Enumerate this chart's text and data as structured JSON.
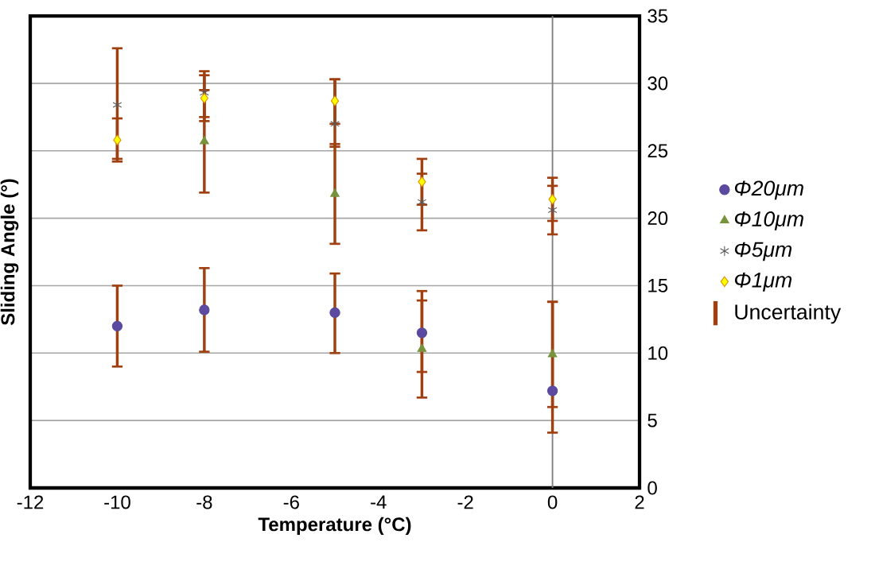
{
  "chart_data": {
    "type": "scatter",
    "xlabel": "Temperature (°C)",
    "ylabel": "Sliding Angle (°)",
    "x": [
      -10,
      -8,
      -5,
      -3,
      0
    ],
    "series": [
      {
        "name": "Φ20μm",
        "color": "#5b4a9f",
        "marker": "circle",
        "values": [
          12.0,
          13.2,
          13.0,
          11.5,
          7.2
        ],
        "errors": [
          [
            9.0,
            15.0
          ],
          [
            10.1,
            16.3
          ],
          [
            10.0,
            15.9
          ],
          [
            8.6,
            14.6
          ],
          [
            6.0,
            13.8
          ]
        ]
      },
      {
        "name": "Φ10μm",
        "color": "#77933c",
        "marker": "triangle",
        "values": [
          null,
          25.7,
          21.8,
          10.3,
          9.9
        ],
        "errors": [
          null,
          [
            21.9,
            29.5
          ],
          [
            18.1,
            25.5
          ],
          [
            6.7,
            13.9
          ],
          [
            4.1,
            13.8
          ]
        ]
      },
      {
        "name": "Φ5μm",
        "color": "#595959",
        "marker": "cross",
        "values": [
          28.4,
          29.3,
          27.0,
          21.2,
          20.6
        ],
        "errors": [
          [
            24.2,
            32.6
          ],
          [
            27.5,
            30.9
          ],
          [
            25.3,
            30.3
          ],
          [
            19.1,
            23.3
          ],
          [
            18.8,
            22.4
          ]
        ]
      },
      {
        "name": "Φ1μm",
        "color": "#ffff00",
        "marker": "diamond",
        "values": [
          25.8,
          28.9,
          28.7,
          22.7,
          21.4
        ],
        "errors": [
          [
            24.4,
            27.4
          ],
          [
            27.2,
            30.6
          ],
          [
            27.0,
            30.3
          ],
          [
            21.0,
            24.4
          ],
          [
            19.8,
            23.0
          ]
        ]
      }
    ],
    "xlim": [
      -12,
      2
    ],
    "xticks": [
      -12,
      -10,
      -8,
      -6,
      -4,
      -2,
      0,
      2
    ],
    "ylim": [
      0,
      35
    ],
    "yticks": [
      0,
      5,
      10,
      15,
      20,
      25,
      30,
      35
    ],
    "ref_lines": [
      {
        "axis": "x",
        "value": 0,
        "color": "#808080"
      }
    ],
    "annotations": [
      "Uncertainty"
    ],
    "grid": "y",
    "legend": "right"
  }
}
